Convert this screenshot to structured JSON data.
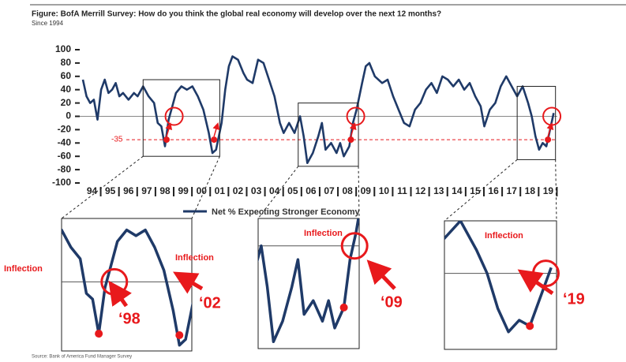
{
  "chart_data": {
    "type": "line",
    "title": "Figure: BofA Merrill Survey: How do you think the global real economy will develop over the next 12 months?",
    "subtitle": "Since 1994",
    "source": "Source: Bank of America Fund Manager Survey",
    "series": [
      {
        "name": "Net % Expecting Stronger Economy",
        "color": "#1f3a68",
        "x": [
          1994.0,
          1994.2,
          1994.4,
          1994.6,
          1994.8,
          1995.0,
          1995.2,
          1995.4,
          1995.6,
          1995.8,
          1996.0,
          1996.2,
          1996.5,
          1996.8,
          1997.0,
          1997.3,
          1997.6,
          1997.9,
          1998.1,
          1998.3,
          1998.5,
          1998.7,
          1998.9,
          1999.1,
          1999.4,
          1999.7,
          2000.0,
          2000.3,
          2000.6,
          2000.9,
          2001.1,
          2001.3,
          2001.6,
          2001.8,
          2002.0,
          2002.2,
          2002.5,
          2002.8,
          2003.0,
          2003.3,
          2003.6,
          2003.9,
          2004.2,
          2004.5,
          2004.8,
          2005.0,
          2005.3,
          2005.6,
          2005.9,
          2006.1,
          2006.3,
          2006.6,
          2006.9,
          2007.1,
          2007.3,
          2007.6,
          2007.9,
          2008.1,
          2008.3,
          2008.6,
          2008.8,
          2009.0,
          2009.3,
          2009.5,
          2009.7,
          2010.0,
          2010.4,
          2010.7,
          2011.0,
          2011.3,
          2011.6,
          2011.9,
          2012.2,
          2012.5,
          2012.8,
          2013.1,
          2013.4,
          2013.7,
          2014.0,
          2014.3,
          2014.6,
          2014.9,
          2015.2,
          2015.5,
          2015.8,
          2016.0,
          2016.3,
          2016.6,
          2016.9,
          2017.2,
          2017.5,
          2017.8,
          2018.1,
          2018.4,
          2018.6,
          2018.8,
          2019.0,
          2019.2,
          2019.4,
          2019.6,
          2019.8
        ],
        "values": [
          55,
          30,
          20,
          25,
          -5,
          40,
          55,
          35,
          40,
          50,
          30,
          35,
          25,
          35,
          30,
          45,
          30,
          20,
          -10,
          -15,
          -45,
          -5,
          15,
          35,
          45,
          40,
          45,
          30,
          10,
          -25,
          -55,
          -50,
          -10,
          40,
          75,
          90,
          85,
          65,
          55,
          50,
          85,
          80,
          55,
          30,
          -10,
          -25,
          -10,
          -25,
          0,
          -30,
          -70,
          -55,
          -30,
          -10,
          -50,
          -40,
          -55,
          -40,
          -60,
          -45,
          -10,
          10,
          50,
          75,
          80,
          60,
          50,
          55,
          30,
          10,
          -10,
          -15,
          10,
          20,
          40,
          50,
          35,
          60,
          55,
          45,
          55,
          40,
          50,
          30,
          15,
          -15,
          10,
          20,
          45,
          60,
          45,
          30,
          45,
          20,
          0,
          -30,
          -50,
          -40,
          -45,
          -20,
          5
        ]
      }
    ],
    "xlim": [
      1994,
      2020
    ],
    "xticks": [
      {
        "value": 1994.5,
        "label": "94"
      },
      {
        "value": 1995.5,
        "label": "95"
      },
      {
        "value": 1996.5,
        "label": "96"
      },
      {
        "value": 1997.5,
        "label": "97"
      },
      {
        "value": 1998.5,
        "label": "98"
      },
      {
        "value": 1999.5,
        "label": "99"
      },
      {
        "value": 2000.5,
        "label": "00"
      },
      {
        "value": 2001.5,
        "label": "01"
      },
      {
        "value": 2002.5,
        "label": "02"
      },
      {
        "value": 2003.5,
        "label": "03"
      },
      {
        "value": 2004.5,
        "label": "04"
      },
      {
        "value": 2005.5,
        "label": "05"
      },
      {
        "value": 2006.5,
        "label": "06"
      },
      {
        "value": 2007.5,
        "label": "07"
      },
      {
        "value": 2008.5,
        "label": "08"
      },
      {
        "value": 2009.5,
        "label": "09"
      },
      {
        "value": 2010.5,
        "label": "10"
      },
      {
        "value": 2011.5,
        "label": "11"
      },
      {
        "value": 2012.5,
        "label": "12"
      },
      {
        "value": 2013.5,
        "label": "13"
      },
      {
        "value": 2014.5,
        "label": "14"
      },
      {
        "value": 2015.5,
        "label": "15"
      },
      {
        "value": 2016.5,
        "label": "16"
      },
      {
        "value": 2017.5,
        "label": "17"
      },
      {
        "value": 2018.5,
        "label": "18"
      },
      {
        "value": 2019.5,
        "label": "19"
      }
    ],
    "ylim": [
      -100,
      100
    ],
    "yticks": [
      -100,
      -80,
      -60,
      -40,
      -20,
      0,
      20,
      40,
      60,
      80,
      100
    ],
    "reference_line": {
      "value": -35,
      "label": "-35",
      "color": "#e8191c"
    },
    "annotations": [
      "Inflection",
      "Inflection",
      "Inflection",
      "Inflection",
      "‘98",
      "‘02",
      "‘09",
      "‘19"
    ]
  }
}
